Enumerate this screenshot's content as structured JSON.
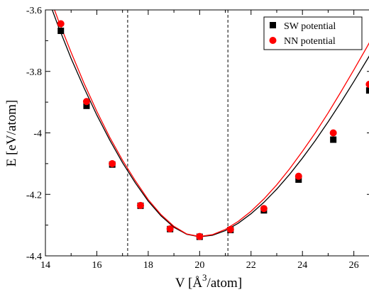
{
  "chart_data": {
    "type": "scatter",
    "xlabel_prefix": "V [",
    "xlabel_unit": "Å",
    "xlabel_sup": "3",
    "xlabel_suffix": "/atom]",
    "ylabel": "E [eV/atom]",
    "xlim": [
      14,
      26.7
    ],
    "ylim": [
      -4.4,
      -3.6
    ],
    "xticks": [
      "14",
      "16",
      "18",
      "20",
      "22",
      "24",
      "26"
    ],
    "yticks": [
      "-3.6",
      "-3.8",
      "-4",
      "-4.2",
      "-4.4"
    ],
    "vlines": [
      17.2,
      21.1
    ],
    "legend_position": "top-right",
    "series": [
      {
        "name": "SW potential",
        "marker": "square",
        "color": "#000000",
        "points": [
          [
            14.6,
            -3.668
          ],
          [
            15.6,
            -3.912
          ],
          [
            16.6,
            -4.103
          ],
          [
            17.7,
            -4.237
          ],
          [
            18.85,
            -4.313
          ],
          [
            20.0,
            -4.338
          ],
          [
            21.2,
            -4.316
          ],
          [
            22.5,
            -4.252
          ],
          [
            23.85,
            -4.152
          ],
          [
            25.2,
            -4.022
          ],
          [
            26.6,
            -3.862
          ]
        ],
        "curve": [
          [
            14.0,
            -3.54
          ],
          [
            14.5,
            -3.653
          ],
          [
            15.0,
            -3.758
          ],
          [
            15.5,
            -3.853
          ],
          [
            16.0,
            -3.942
          ],
          [
            16.5,
            -4.023
          ],
          [
            17.0,
            -4.097
          ],
          [
            17.5,
            -4.163
          ],
          [
            18.0,
            -4.222
          ],
          [
            18.5,
            -4.27
          ],
          [
            19.0,
            -4.307
          ],
          [
            19.5,
            -4.33
          ],
          [
            20.0,
            -4.338
          ],
          [
            20.5,
            -4.333
          ],
          [
            21.0,
            -4.318
          ],
          [
            21.5,
            -4.294
          ],
          [
            22.0,
            -4.263
          ],
          [
            22.5,
            -4.226
          ],
          [
            23.0,
            -4.183
          ],
          [
            23.5,
            -4.135
          ],
          [
            24.0,
            -4.082
          ],
          [
            24.5,
            -4.025
          ],
          [
            25.0,
            -3.964
          ],
          [
            25.5,
            -3.9
          ],
          [
            26.0,
            -3.833
          ],
          [
            26.5,
            -3.764
          ],
          [
            26.7,
            -3.736
          ]
        ]
      },
      {
        "name": "NN potential",
        "marker": "circle",
        "color": "#ff0000",
        "points": [
          [
            14.6,
            -3.645
          ],
          [
            15.6,
            -3.898
          ],
          [
            16.6,
            -4.1
          ],
          [
            17.7,
            -4.236
          ],
          [
            18.85,
            -4.312
          ],
          [
            20.0,
            -4.337
          ],
          [
            21.2,
            -4.314
          ],
          [
            22.5,
            -4.246
          ],
          [
            23.85,
            -4.141
          ],
          [
            25.2,
            -4.0
          ],
          [
            26.6,
            -3.842
          ]
        ],
        "curve": [
          [
            14.0,
            -3.52
          ],
          [
            14.5,
            -3.633
          ],
          [
            15.0,
            -3.738
          ],
          [
            15.5,
            -3.838
          ],
          [
            16.0,
            -3.93
          ],
          [
            16.5,
            -4.014
          ],
          [
            17.0,
            -4.089
          ],
          [
            17.5,
            -4.156
          ],
          [
            18.0,
            -4.217
          ],
          [
            18.5,
            -4.266
          ],
          [
            19.0,
            -4.304
          ],
          [
            19.5,
            -4.329
          ],
          [
            20.0,
            -4.337
          ],
          [
            20.5,
            -4.331
          ],
          [
            21.0,
            -4.314
          ],
          [
            21.5,
            -4.288
          ],
          [
            22.0,
            -4.255
          ],
          [
            22.5,
            -4.215
          ],
          [
            23.0,
            -4.169
          ],
          [
            23.5,
            -4.117
          ],
          [
            24.0,
            -4.06
          ],
          [
            24.5,
            -4.0
          ],
          [
            25.0,
            -3.935
          ],
          [
            25.5,
            -3.866
          ],
          [
            26.0,
            -3.795
          ],
          [
            26.5,
            -3.722
          ],
          [
            26.7,
            -3.692
          ]
        ]
      }
    ]
  }
}
